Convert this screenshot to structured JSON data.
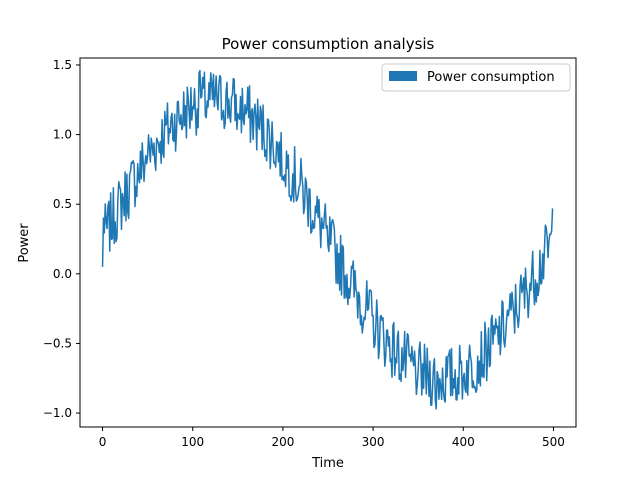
{
  "chart_data": {
    "type": "line",
    "title": "Power consumption analysis",
    "xlabel": "Time",
    "ylabel": "Power",
    "xlim": [
      -25,
      525
    ],
    "ylim": [
      -1.1,
      1.55
    ],
    "xticks": [
      0,
      100,
      200,
      300,
      400,
      500
    ],
    "yticks": [
      -1.0,
      -0.5,
      0.0,
      0.5,
      1.0,
      1.5
    ],
    "ytick_labels": [
      "−1.0",
      "−0.5",
      "0.0",
      "0.5",
      "1.0",
      "1.5"
    ],
    "grid": false,
    "legend_position": "top-right",
    "color": "#1f77b4",
    "series": [
      {
        "name": "Power consumption",
        "trend": {
          "type": "sine",
          "offset": 0.25,
          "amplitude": 1.0,
          "period": 500,
          "noise_amplitude": 0.22
        },
        "sample_points": [
          {
            "x": 0,
            "y": 0.05
          },
          {
            "x": 1,
            "y": 0.4
          },
          {
            "x": 50,
            "y": 0.85
          },
          {
            "x": 100,
            "y": 1.2
          },
          {
            "x": 108,
            "y": 1.46
          },
          {
            "x": 150,
            "y": 1.15
          },
          {
            "x": 200,
            "y": 0.7
          },
          {
            "x": 250,
            "y": 0.2
          },
          {
            "x": 300,
            "y": -0.3
          },
          {
            "x": 350,
            "y": -0.7
          },
          {
            "x": 370,
            "y": -0.97
          },
          {
            "x": 400,
            "y": -0.75
          },
          {
            "x": 450,
            "y": -0.3
          },
          {
            "x": 499,
            "y": 0.47
          }
        ]
      }
    ]
  }
}
